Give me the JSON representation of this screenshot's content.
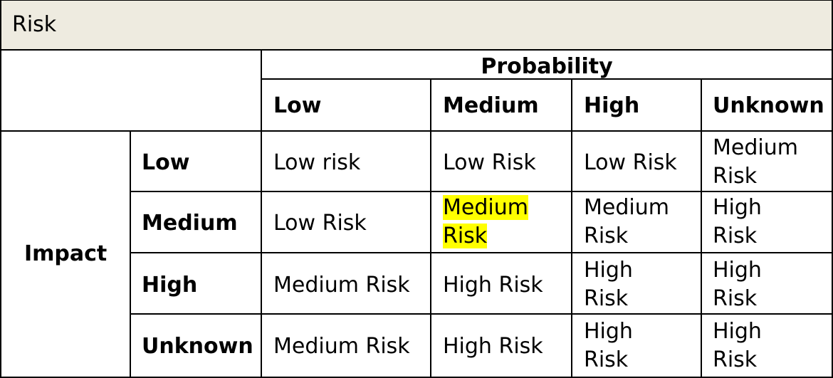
{
  "table": {
    "title": "Risk",
    "probability_header": "Probability",
    "impact_header": "Impact",
    "columns": [
      "Low",
      "Medium",
      "High",
      "Unknown"
    ],
    "rows": [
      {
        "label": "Low",
        "cells": [
          "Low risk",
          "Low Risk",
          "Low Risk",
          "Medium Risk"
        ]
      },
      {
        "label": "Medium",
        "cells": [
          "Low Risk",
          "Medium Risk",
          "Medium Risk",
          "High Risk"
        ]
      },
      {
        "label": "High",
        "cells": [
          "Medium Risk",
          "High Risk",
          "High Risk",
          "High Risk"
        ]
      },
      {
        "label": "Unknown",
        "cells": [
          "Medium Risk",
          "High Risk",
          "High Risk",
          "High Risk"
        ]
      }
    ],
    "highlight_color": "#ffff00",
    "title_bar_color": "#eeebe0"
  }
}
